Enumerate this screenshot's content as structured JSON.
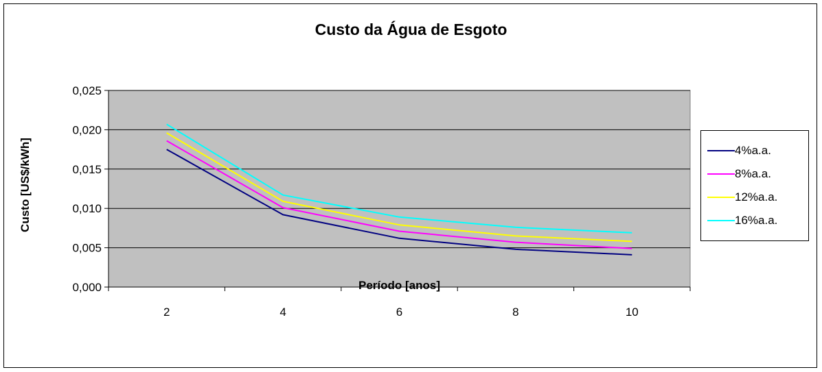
{
  "chart_data": {
    "type": "line",
    "title": "Custo da Água de Esgoto",
    "xlabel": "Período [anos]",
    "ylabel": "Custo [US$/kWh]",
    "categories": [
      "2",
      "4",
      "6",
      "8",
      "10"
    ],
    "ylim": [
      0,
      0.025
    ],
    "yticks": [
      "0,000",
      "0,005",
      "0,010",
      "0,015",
      "0,020",
      "0,025"
    ],
    "grid": true,
    "legend_position": "right",
    "plot_background": "#c0c0c0",
    "series": [
      {
        "name": "4%a.a.",
        "color": "#000080",
        "values": [
          0.0175,
          0.0092,
          0.0062,
          0.0048,
          0.0041
        ]
      },
      {
        "name": "8%a.a.",
        "color": "#ff00ff",
        "values": [
          0.0186,
          0.0101,
          0.0071,
          0.0057,
          0.0049
        ]
      },
      {
        "name": "12%a.a.",
        "color": "#ffff00",
        "values": [
          0.0196,
          0.0109,
          0.0079,
          0.0065,
          0.0058
        ]
      },
      {
        "name": "16%a.a.",
        "color": "#00ffff",
        "values": [
          0.0207,
          0.0117,
          0.0089,
          0.0076,
          0.0069
        ]
      }
    ]
  }
}
